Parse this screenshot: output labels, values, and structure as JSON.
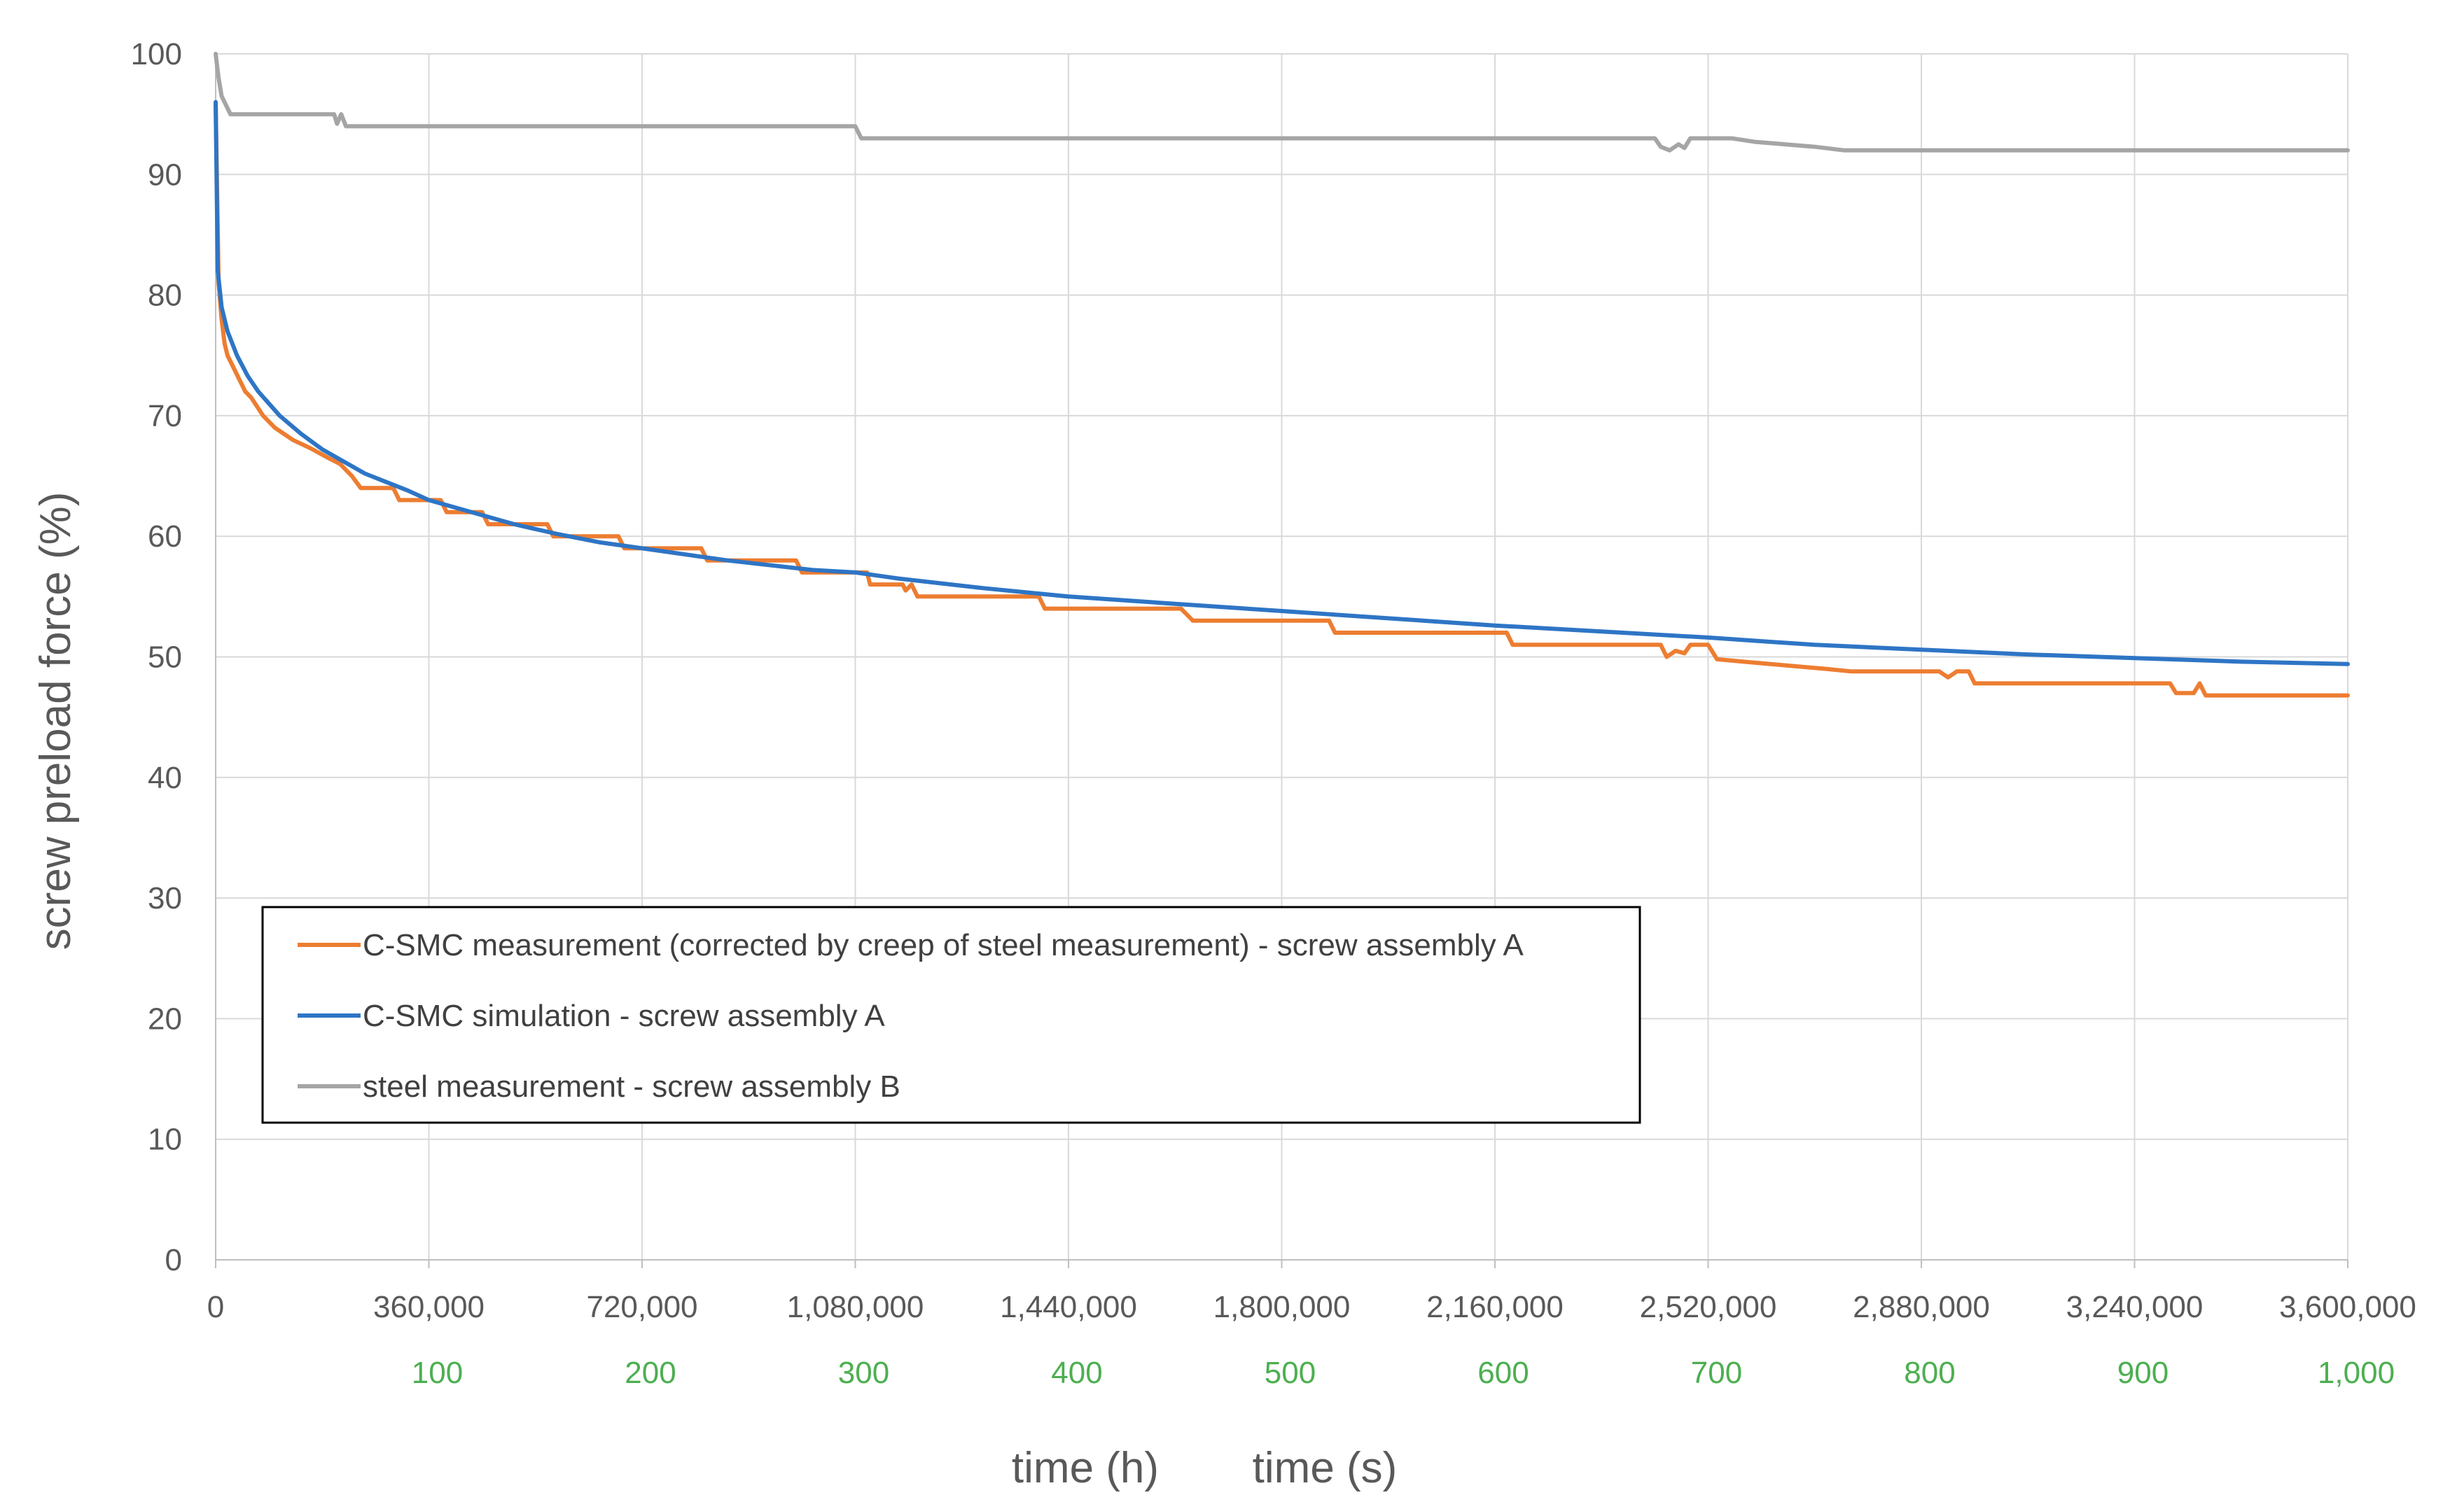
{
  "chart_data": {
    "type": "line",
    "title": "",
    "ylabel": "screw preload force (%)",
    "xlabel_seconds": "time (s)",
    "xlabel_hours": "time (h)",
    "xlim": [
      0,
      3600000
    ],
    "ylim": [
      0,
      100
    ],
    "y_ticks": [
      0,
      10,
      20,
      30,
      40,
      50,
      60,
      70,
      80,
      90,
      100
    ],
    "y_tick_labels": [
      "0",
      "10",
      "20",
      "30",
      "40",
      "50",
      "60",
      "70",
      "80",
      "90",
      "100"
    ],
    "x_ticks_s": [
      0,
      360000,
      720000,
      1080000,
      1440000,
      1800000,
      2160000,
      2520000,
      2880000,
      3240000,
      3600000
    ],
    "x_tick_labels_s": [
      "0",
      "360,000",
      "720,000",
      "1,080,000",
      "1,440,000",
      "1,800,000",
      "2,160,000",
      "2,520,000",
      "2,880,000",
      "3,240,000",
      "3,600,000"
    ],
    "x_ticks_h": [
      100,
      200,
      300,
      400,
      500,
      600,
      700,
      800,
      900,
      1000
    ],
    "x_tick_labels_h": [
      "100",
      "200",
      "300",
      "400",
      "500",
      "600",
      "700",
      "800",
      "900",
      "1,000"
    ],
    "grid": true,
    "legend_position": "lower-left",
    "colors": {
      "orange": "#ED7D31",
      "blue": "#2E75C5",
      "gray": "#A5A5A5",
      "hours_green": "#4CAF50",
      "axis_text": "#595959",
      "grid": "#D9D9D9"
    },
    "series": [
      {
        "name": "C-SMC measurement (corrected by creep of steel measurement) - screw assembly A",
        "color": "#ED7D31",
        "points": [
          [
            0,
            96
          ],
          [
            5000,
            81
          ],
          [
            10000,
            78
          ],
          [
            15000,
            76
          ],
          [
            20000,
            75
          ],
          [
            30000,
            74
          ],
          [
            40000,
            73
          ],
          [
            50000,
            72
          ],
          [
            60000,
            71.5
          ],
          [
            80000,
            70
          ],
          [
            100000,
            69
          ],
          [
            130000,
            68
          ],
          [
            160000,
            67.3
          ],
          [
            190000,
            66.5
          ],
          [
            210000,
            66
          ],
          [
            230000,
            65
          ],
          [
            245000,
            64
          ],
          [
            300000,
            64
          ],
          [
            310000,
            63
          ],
          [
            380000,
            63
          ],
          [
            390000,
            62
          ],
          [
            450000,
            62
          ],
          [
            460000,
            61
          ],
          [
            560000,
            61
          ],
          [
            570000,
            60
          ],
          [
            680000,
            60
          ],
          [
            690000,
            59
          ],
          [
            820000,
            59
          ],
          [
            830000,
            58
          ],
          [
            980000,
            58
          ],
          [
            990000,
            57
          ],
          [
            1100000,
            57
          ],
          [
            1105000,
            56
          ],
          [
            1160000,
            56
          ],
          [
            1165000,
            55.5
          ],
          [
            1175000,
            56
          ],
          [
            1185000,
            55
          ],
          [
            1390000,
            55
          ],
          [
            1400000,
            54
          ],
          [
            1630000,
            54
          ],
          [
            1640000,
            53.5
          ],
          [
            1650000,
            53
          ],
          [
            1880000,
            53
          ],
          [
            1890000,
            52
          ],
          [
            2180000,
            52
          ],
          [
            2190000,
            51
          ],
          [
            2440000,
            51
          ],
          [
            2450000,
            50
          ],
          [
            2465000,
            50.5
          ],
          [
            2480000,
            50.3
          ],
          [
            2490000,
            51
          ],
          [
            2520000,
            51
          ],
          [
            2535000,
            49.8
          ],
          [
            2580000,
            49.6
          ],
          [
            2650000,
            49.3
          ],
          [
            2720000,
            49
          ],
          [
            2760000,
            48.8
          ],
          [
            2910000,
            48.8
          ],
          [
            2925000,
            48.3
          ],
          [
            2940000,
            48.8
          ],
          [
            2960000,
            48.8
          ],
          [
            2970000,
            47.8
          ],
          [
            3300000,
            47.8
          ],
          [
            3310000,
            47
          ],
          [
            3340000,
            47
          ],
          [
            3350000,
            47.8
          ],
          [
            3360000,
            46.8
          ],
          [
            3600000,
            46.8
          ]
        ]
      },
      {
        "name": "C-SMC simulation - screw assembly A",
        "color": "#2E75C5",
        "points": [
          [
            0,
            96
          ],
          [
            3600,
            82
          ],
          [
            10000,
            79
          ],
          [
            20000,
            77
          ],
          [
            36000,
            75
          ],
          [
            54000,
            73.3
          ],
          [
            72000,
            72
          ],
          [
            108000,
            70
          ],
          [
            144000,
            68.5
          ],
          [
            180000,
            67.2
          ],
          [
            216000,
            66.2
          ],
          [
            252000,
            65.2
          ],
          [
            288000,
            64.5
          ],
          [
            324000,
            63.8
          ],
          [
            360000,
            63
          ],
          [
            432000,
            62
          ],
          [
            504000,
            61
          ],
          [
            576000,
            60.2
          ],
          [
            648000,
            59.5
          ],
          [
            720000,
            59
          ],
          [
            864000,
            58
          ],
          [
            1008000,
            57.2
          ],
          [
            1080000,
            57
          ],
          [
            1152000,
            56.5
          ],
          [
            1296000,
            55.7
          ],
          [
            1440000,
            55
          ],
          [
            1620000,
            54.4
          ],
          [
            1800000,
            53.8
          ],
          [
            1980000,
            53.2
          ],
          [
            2160000,
            52.6
          ],
          [
            2340000,
            52.1
          ],
          [
            2520000,
            51.6
          ],
          [
            2700000,
            51
          ],
          [
            2880000,
            50.6
          ],
          [
            3060000,
            50.2
          ],
          [
            3240000,
            49.9
          ],
          [
            3420000,
            49.6
          ],
          [
            3600000,
            49.4
          ]
        ]
      },
      {
        "name": "steel measurement - screw assembly B",
        "color": "#A5A5A5",
        "points": [
          [
            0,
            100
          ],
          [
            5000,
            98
          ],
          [
            10000,
            96.5
          ],
          [
            15000,
            96
          ],
          [
            20000,
            95.5
          ],
          [
            25000,
            95
          ],
          [
            200000,
            95
          ],
          [
            205000,
            94.2
          ],
          [
            212000,
            95
          ],
          [
            220000,
            94
          ],
          [
            1080000,
            94
          ],
          [
            1090000,
            93
          ],
          [
            2430000,
            93
          ],
          [
            2440000,
            92.3
          ],
          [
            2455000,
            92
          ],
          [
            2470000,
            92.5
          ],
          [
            2480000,
            92.2
          ],
          [
            2490000,
            93
          ],
          [
            2560000,
            93
          ],
          [
            2600000,
            92.7
          ],
          [
            2650000,
            92.5
          ],
          [
            2700000,
            92.3
          ],
          [
            2750000,
            92
          ],
          [
            3600000,
            92
          ]
        ]
      }
    ]
  }
}
